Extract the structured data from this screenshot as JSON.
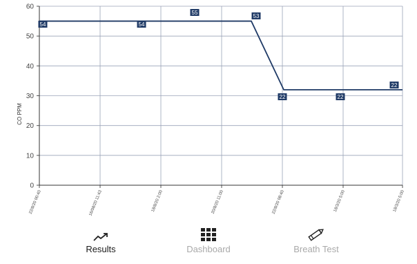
{
  "chart_data": {
    "type": "line",
    "ylabel": "CO PPM",
    "ylim": [
      0,
      60
    ],
    "yticks": [
      0,
      10,
      20,
      30,
      40,
      50,
      60
    ],
    "xticks": [
      "22/8/20 00:40",
      "16/08/20 11:43",
      "18/8/20 2:00",
      "20/8/20 11:00",
      "22/8/20 08:40",
      "18/3/20 5:00",
      "18/3/20 5:00"
    ],
    "points": [
      {
        "x": "22/8/20 00:40",
        "y": 54
      },
      {
        "x": "18/8/20 2:00",
        "y": 54
      },
      {
        "x": "20/8/20 11:00",
        "y": 55
      },
      {
        "x": "22/8/20 08:40",
        "y": 53
      },
      {
        "x": "22/8/20 08:40",
        "y": 22
      },
      {
        "x": "18/3/20 5:00",
        "y": 22
      },
      {
        "x": "18/3/20 5:00",
        "y": 22
      }
    ],
    "line_color": "#1f3a66",
    "grid": true
  },
  "tabs": [
    {
      "label": "Results",
      "icon": "trending-up-icon",
      "active": true
    },
    {
      "label": "Dashboard",
      "icon": "grid-icon",
      "active": false
    },
    {
      "label": "Breath Test",
      "icon": "pencil-icon",
      "active": false
    }
  ]
}
